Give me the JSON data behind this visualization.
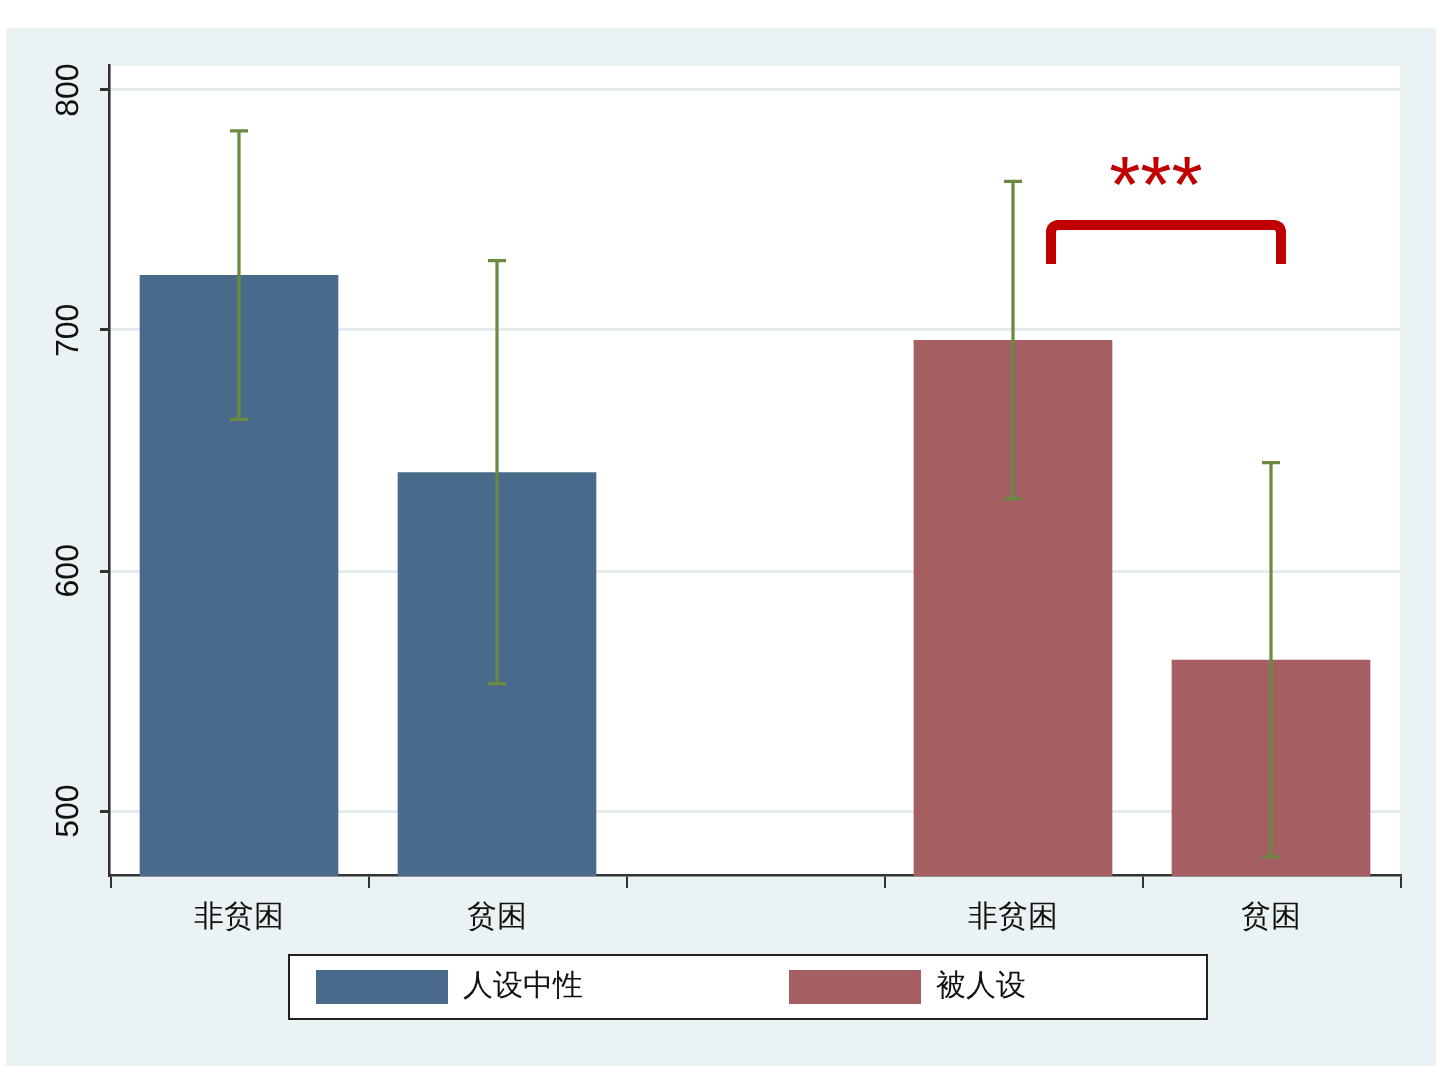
{
  "chart_data": {
    "type": "bar",
    "categories": [
      "非贫困",
      "贫困",
      null,
      "非贫困",
      "贫困"
    ],
    "series": [
      {
        "name": "人设中性",
        "color": "#496a8b",
        "values": [
          723,
          641,
          null,
          null,
          null
        ],
        "errors": [
          60,
          88,
          null,
          null,
          null
        ]
      },
      {
        "name": "被人设",
        "color": "#a55e62",
        "values": [
          null,
          null,
          null,
          696,
          563
        ],
        "errors": [
          null,
          null,
          null,
          66,
          82
        ]
      }
    ],
    "ylim": [
      473,
      810
    ],
    "yticks": [
      500,
      600,
      700,
      800
    ],
    "grid": "y",
    "legend": "bottom",
    "annotations": [
      "***"
    ]
  }
}
